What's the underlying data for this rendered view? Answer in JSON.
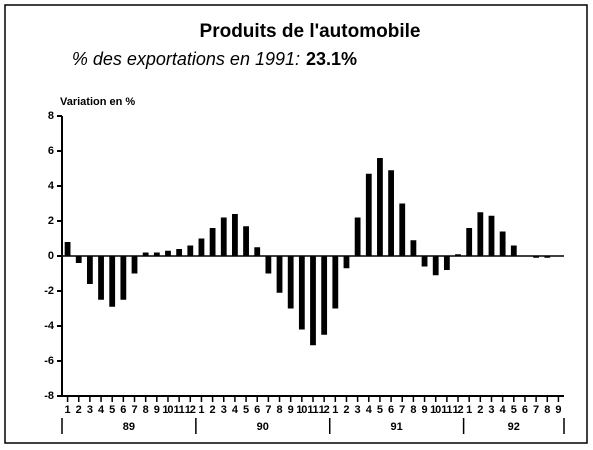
{
  "chart_data": {
    "type": "bar",
    "title": "Produits de l'automobile",
    "subtitle": "% des exportations en 1991:",
    "subtitle_value": "23.1%",
    "y_label": "Variation en %",
    "categories": [
      "1",
      "2",
      "3",
      "4",
      "5",
      "6",
      "7",
      "8",
      "9",
      "10",
      "11",
      "12",
      "1",
      "2",
      "3",
      "4",
      "5",
      "6",
      "7",
      "8",
      "9",
      "10",
      "11",
      "12",
      "1",
      "2",
      "3",
      "4",
      "5",
      "6",
      "7",
      "8",
      "9",
      "10",
      "11",
      "12",
      "1",
      "2",
      "3",
      "4",
      "5",
      "6",
      "7",
      "8",
      "9"
    ],
    "year_labels": [
      "89",
      "90",
      "91",
      "92"
    ],
    "values": [
      0.8,
      -0.4,
      -1.6,
      -2.5,
      -2.9,
      -2.5,
      -1.0,
      0.2,
      0.2,
      0.3,
      0.4,
      0.6,
      1.0,
      1.6,
      2.2,
      2.4,
      1.7,
      0.5,
      -1.0,
      -2.1,
      -3.0,
      -4.2,
      -5.1,
      -4.5,
      -3.0,
      -0.7,
      2.2,
      4.7,
      5.6,
      4.9,
      3.0,
      0.9,
      -0.6,
      -1.1,
      -0.8,
      0.1,
      1.6,
      2.5,
      2.3,
      1.4,
      0.6,
      0.0,
      -0.1,
      -0.1,
      0.0
    ],
    "color": "#000000",
    "ylim": [
      -8,
      8
    ],
    "yticks": [
      -8,
      -6,
      -4,
      -2,
      0,
      2,
      4,
      6,
      8
    ]
  }
}
